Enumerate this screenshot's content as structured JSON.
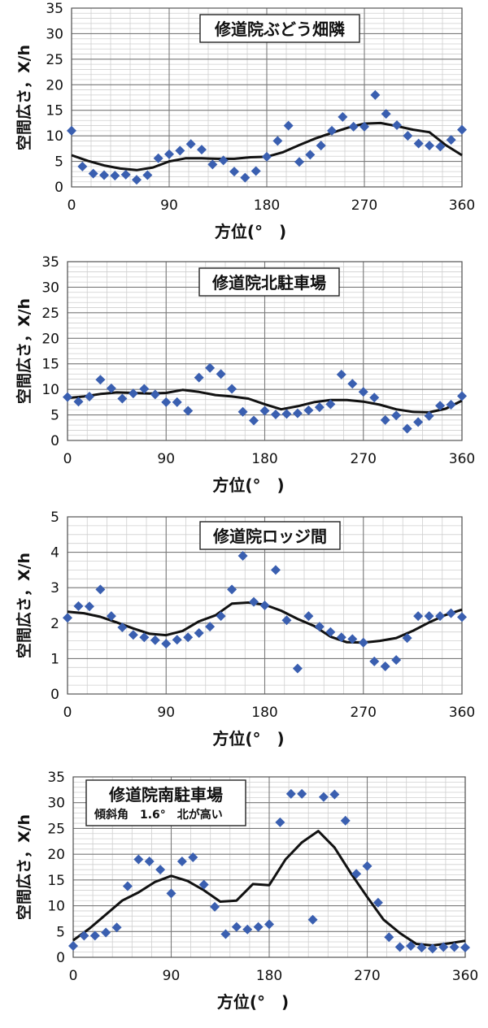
{
  "chart_data": [
    {
      "type": "scatter",
      "title": "修道院ぶどう畑隣",
      "subtitle": "",
      "xlabel": "方位(°　)",
      "ylabel": "空間広さ，X/h",
      "xlim": [
        0,
        360
      ],
      "ylim": [
        0,
        35
      ],
      "xticks": [
        0,
        90,
        180,
        270,
        360
      ],
      "yticks": [
        0,
        5,
        10,
        15,
        20,
        25,
        30,
        35
      ],
      "grid": true,
      "legend": "none",
      "colors": {
        "points": "#3a5fb0",
        "line": "#111111",
        "grid": "#b8b8b8"
      },
      "points": {
        "x": [
          0,
          10,
          20,
          30,
          40,
          50,
          60,
          70,
          80,
          90,
          100,
          110,
          120,
          130,
          140,
          150,
          160,
          170,
          180,
          190,
          200,
          210,
          220,
          230,
          240,
          250,
          260,
          270,
          280,
          290,
          300,
          310,
          320,
          330,
          340,
          350,
          360
        ],
        "y": [
          11,
          4,
          2.6,
          2.3,
          2.2,
          2.4,
          1.4,
          2.3,
          5.6,
          6.4,
          7.1,
          8.4,
          7.3,
          4.4,
          5.2,
          3,
          1.8,
          3.1,
          5.9,
          9,
          12,
          4.9,
          6.3,
          8.1,
          11,
          13.7,
          11.8,
          11.8,
          18,
          14.3,
          12.1,
          10,
          8.5,
          8.1,
          7.9,
          9.2,
          11.2
        ]
      },
      "trend": {
        "x": [
          0,
          15,
          30,
          45,
          60,
          75,
          90,
          105,
          120,
          135,
          150,
          165,
          180,
          195,
          210,
          225,
          240,
          255,
          270,
          285,
          300,
          315,
          330,
          345,
          360
        ],
        "y": [
          6.2,
          5.1,
          4.2,
          3.6,
          3.3,
          3.8,
          5,
          5.6,
          5.6,
          5.5,
          5.5,
          5.8,
          5.9,
          6.8,
          8.2,
          9.5,
          10.6,
          11.6,
          12.4,
          12.5,
          11.9,
          11.2,
          10.7,
          8.2,
          6.2
        ]
      }
    },
    {
      "type": "scatter",
      "title": "修道院北駐車場",
      "subtitle": "",
      "xlabel": "方位(°　)",
      "ylabel": "空間広さ，X/h",
      "xlim": [
        0,
        360
      ],
      "ylim": [
        0,
        35
      ],
      "xticks": [
        0,
        90,
        180,
        270,
        360
      ],
      "yticks": [
        0,
        5,
        10,
        15,
        20,
        25,
        30,
        35
      ],
      "grid": true,
      "legend": "none",
      "colors": {
        "points": "#3a5fb0",
        "line": "#111111",
        "grid": "#b8b8b8"
      },
      "points": {
        "x": [
          0,
          10,
          20,
          30,
          40,
          50,
          60,
          70,
          80,
          90,
          100,
          110,
          120,
          130,
          140,
          150,
          160,
          170,
          180,
          190,
          200,
          210,
          220,
          230,
          240,
          250,
          260,
          270,
          280,
          290,
          300,
          310,
          320,
          330,
          340,
          350,
          360
        ],
        "y": [
          8.5,
          7.6,
          8.6,
          11.9,
          10.2,
          8.2,
          9.2,
          10.1,
          9,
          7.5,
          7.5,
          5.8,
          12.3,
          14.2,
          13,
          10.1,
          5.6,
          3.9,
          5.8,
          5.1,
          5.2,
          5.3,
          5.9,
          6.5,
          7.1,
          12.9,
          11.1,
          9.5,
          8.4,
          4,
          4.9,
          2.3,
          3.6,
          4.8,
          6.8,
          7,
          8.7
        ]
      },
      "trend": {
        "x": [
          0,
          15,
          30,
          45,
          60,
          75,
          90,
          105,
          120,
          135,
          150,
          165,
          180,
          195,
          210,
          225,
          240,
          255,
          270,
          285,
          300,
          315,
          330,
          345,
          360
        ],
        "y": [
          8.3,
          8.6,
          9.1,
          9.4,
          9.3,
          9.2,
          9.3,
          9.9,
          9.5,
          8.9,
          8.6,
          8.2,
          7.1,
          6.1,
          6.7,
          7.5,
          7.9,
          7.9,
          7.6,
          7,
          6.1,
          5.6,
          5.5,
          6.2,
          7.8
        ]
      }
    },
    {
      "type": "scatter",
      "title": "修道院ロッジ間",
      "subtitle": "",
      "xlabel": "方位(°　)",
      "ylabel": "空間広さ，X/h",
      "xlim": [
        0,
        360
      ],
      "ylim": [
        0,
        5
      ],
      "xticks": [
        0,
        90,
        180,
        270,
        360
      ],
      "yticks": [
        0,
        1,
        2,
        3,
        4,
        5
      ],
      "grid": true,
      "legend": "none",
      "colors": {
        "points": "#3a5fb0",
        "line": "#111111",
        "grid": "#b8b8b8"
      },
      "points": {
        "x": [
          0,
          10,
          20,
          30,
          40,
          50,
          60,
          70,
          80,
          90,
          100,
          110,
          120,
          130,
          140,
          150,
          160,
          170,
          180,
          190,
          200,
          210,
          220,
          230,
          240,
          250,
          260,
          270,
          280,
          290,
          300,
          310,
          320,
          330,
          340,
          350,
          360
        ],
        "y": [
          2.15,
          2.48,
          2.47,
          2.95,
          2.2,
          1.88,
          1.67,
          1.6,
          1.52,
          1.42,
          1.53,
          1.6,
          1.72,
          1.9,
          2.2,
          2.95,
          3.9,
          2.6,
          2.5,
          3.5,
          2.08,
          0.72,
          2.2,
          1.9,
          1.75,
          1.6,
          1.55,
          1.45,
          0.92,
          0.78,
          0.96,
          1.58,
          2.2,
          2.2,
          2.2,
          2.28,
          2.17
        ]
      },
      "trend": {
        "x": [
          0,
          15,
          30,
          45,
          60,
          75,
          90,
          105,
          120,
          135,
          150,
          165,
          180,
          195,
          210,
          225,
          240,
          255,
          270,
          285,
          300,
          315,
          330,
          345,
          360
        ],
        "y": [
          2.32,
          2.28,
          2.18,
          2.02,
          1.85,
          1.7,
          1.66,
          1.78,
          2.05,
          2.22,
          2.55,
          2.58,
          2.52,
          2.35,
          2.12,
          1.92,
          1.62,
          1.46,
          1.45,
          1.5,
          1.58,
          1.78,
          2.02,
          2.23,
          2.38
        ]
      }
    },
    {
      "type": "scatter",
      "title": "修道院南駐車場",
      "subtitle": "傾斜角　1.6°　北が高い",
      "xlabel": "方位(°　)",
      "ylabel": "空間広さ，X/h",
      "xlim": [
        0,
        360
      ],
      "ylim": [
        0,
        35
      ],
      "xticks": [
        0,
        90,
        180,
        270,
        360
      ],
      "yticks": [
        0,
        5,
        10,
        15,
        20,
        25,
        30,
        35
      ],
      "grid": true,
      "legend": "none",
      "colors": {
        "points": "#3a5fb0",
        "line": "#111111",
        "grid": "#b8b8b8"
      },
      "points": {
        "x": [
          0,
          10,
          20,
          30,
          40,
          50,
          60,
          70,
          80,
          90,
          100,
          110,
          120,
          130,
          140,
          150,
          160,
          170,
          180,
          190,
          200,
          210,
          220,
          230,
          240,
          250,
          260,
          270,
          280,
          290,
          300,
          310,
          320,
          330,
          340,
          350,
          360
        ],
        "y": [
          2.2,
          4.2,
          4.2,
          4.8,
          5.8,
          13.8,
          19,
          18.6,
          17,
          12.4,
          18.6,
          19.4,
          14.1,
          9.8,
          4.5,
          5.9,
          5.4,
          5.9,
          6.4,
          26.2,
          31.7,
          31.7,
          7.3,
          31.1,
          31.6,
          26.5,
          16.2,
          17.7,
          10.6,
          3.9,
          2,
          2.2,
          1.9,
          1.7,
          2,
          2,
          1.9
        ]
      },
      "trend": {
        "x": [
          0,
          15,
          30,
          45,
          60,
          75,
          90,
          105,
          120,
          135,
          150,
          165,
          180,
          195,
          210,
          225,
          240,
          255,
          270,
          285,
          300,
          315,
          330,
          345,
          360
        ],
        "y": [
          3.3,
          5.6,
          8.3,
          11,
          12.6,
          14.6,
          15.8,
          14.8,
          13,
          10.8,
          11,
          14.2,
          14,
          19,
          22.3,
          24.5,
          21.3,
          16.3,
          11.7,
          7.3,
          4.7,
          2.6,
          2.3,
          2.7,
          3.2
        ]
      }
    }
  ]
}
